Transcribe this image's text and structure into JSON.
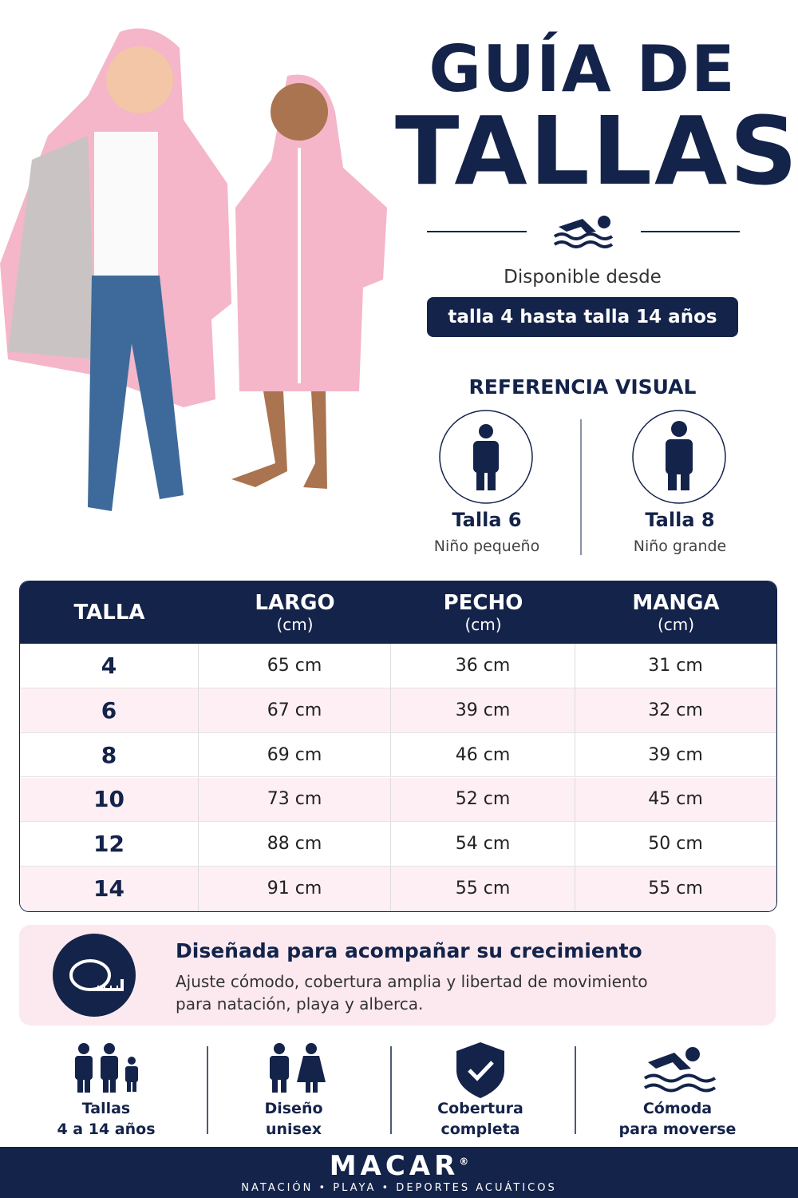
{
  "header": {
    "title_line1": "GUÍA DE",
    "title_line2": "TALLAS",
    "available_label": "Disponible desde",
    "available_range": "talla 4 hasta talla 14 años"
  },
  "visual_reference": {
    "title": "REFERENCIA VISUAL",
    "items": [
      {
        "size": "Talla 6",
        "label": "Niño pequeño"
      },
      {
        "size": "Talla 8",
        "label": "Niño grande"
      }
    ]
  },
  "table": {
    "columns": [
      {
        "name": "TALLA"
      },
      {
        "name": "LARGO",
        "unit": "(cm)"
      },
      {
        "name": "PECHO",
        "unit": "(cm)"
      },
      {
        "name": "MANGA",
        "unit": "(cm)"
      }
    ],
    "rows": [
      [
        "4",
        "65 cm",
        "36 cm",
        "31 cm"
      ],
      [
        "6",
        "67 cm",
        "39 cm",
        "32 cm"
      ],
      [
        "8",
        "69 cm",
        "46 cm",
        "39 cm"
      ],
      [
        "10",
        "73 cm",
        "52 cm",
        "45 cm"
      ],
      [
        "12",
        "88 cm",
        "54 cm",
        "50 cm"
      ],
      [
        "14",
        "91 cm",
        "55 cm",
        "55 cm"
      ]
    ]
  },
  "banner": {
    "title": "Diseñada para acompañar su crecimiento",
    "text_line1": "Ajuste cómodo, cobertura amplia y libertad de movimiento",
    "text_line2": "para natación, playa y alberca."
  },
  "features": [
    {
      "line1": "Tallas",
      "line2": "4 a 14 años"
    },
    {
      "line1": "Diseño",
      "line2": "unisex"
    },
    {
      "line1": "Cobertura",
      "line2": "completa"
    },
    {
      "line1": "Cómoda",
      "line2": "para moverse"
    }
  ],
  "footer": {
    "brand": "MACAR",
    "registered": "®",
    "tagline": "NATACIÓN • PLAYA • DEPORTES ACUÁTICOS"
  }
}
